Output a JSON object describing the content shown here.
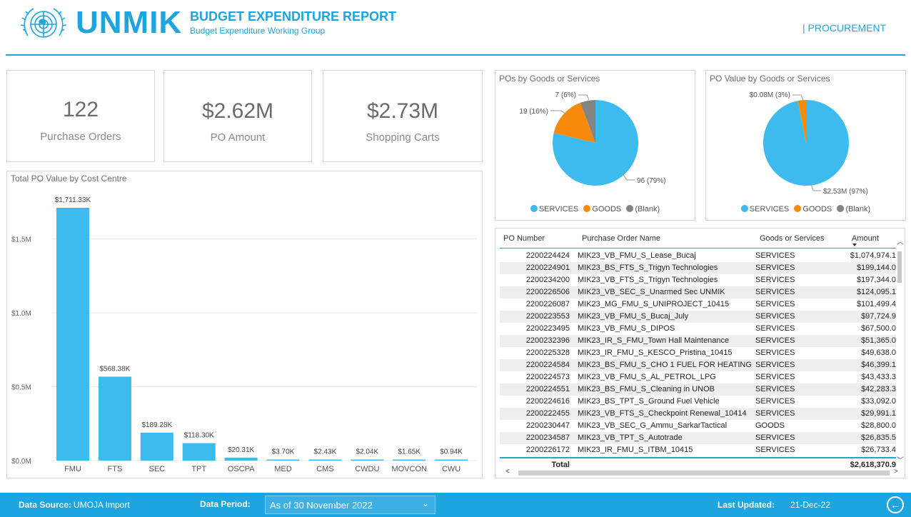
{
  "header": {
    "logo_text": "UNMIK",
    "report_title": "BUDGET EXPENDITURE REPORT",
    "report_subtitle": "Budget Expenditure Working Group",
    "section_link": "| PROCUREMENT",
    "emblem_icon": "un-emblem-icon"
  },
  "kpis": [
    {
      "value": "122",
      "label": "Purchase Orders"
    },
    {
      "value": "$2.62M",
      "label": "PO Amount"
    },
    {
      "value": "$2.73M",
      "label": "Shopping Carts"
    }
  ],
  "colors": {
    "accent": "#1da5e0",
    "services": "#3dbbee",
    "goods": "#f58a0b",
    "blank": "#848484",
    "bar": "#3dbbee"
  },
  "chart_data": [
    {
      "type": "bar",
      "title": "Total PO Value by Cost Centre",
      "categories": [
        "FMU",
        "FTS",
        "SEC",
        "TPT",
        "OSCPA",
        "MED",
        "CMS",
        "CWDU",
        "MOVCON",
        "CWU"
      ],
      "values": [
        1711.33,
        568.38,
        189.28,
        118.3,
        20.31,
        3.7,
        2.43,
        2.04,
        1.65,
        0.94
      ],
      "data_labels": [
        "$1,711.33K",
        "$568.38K",
        "$189.28K",
        "$118.30K",
        "$20.31K",
        "$3.70K",
        "$2.43K",
        "$2.04K",
        "$1.65K",
        "$0.94K"
      ],
      "ylim": [
        0,
        1711.33
      ],
      "yticks": [
        0,
        500,
        1000,
        1500
      ],
      "ytick_labels": [
        "$0.0M",
        "$0.5M",
        "$1.0M",
        "$1.5M"
      ],
      "grid": true,
      "xlabel": "",
      "ylabel": ""
    },
    {
      "type": "pie",
      "title": "POs by Goods or Services",
      "categories": [
        "SERVICES",
        "GOODS",
        "(Blank)"
      ],
      "values": [
        96,
        19,
        7
      ],
      "data_labels": [
        "96 (79%)",
        "19 (16%)",
        "7 (6%)"
      ],
      "legend_position": "bottom"
    },
    {
      "type": "pie",
      "title": "PO Value by Goods or Services",
      "categories": [
        "SERVICES",
        "GOODS",
        "(Blank)"
      ],
      "values": [
        2.53,
        0.08,
        0
      ],
      "data_labels": [
        "$2.53M (97%)",
        "$0.08M (3%)",
        ""
      ],
      "legend_position": "bottom"
    }
  ],
  "table": {
    "columns": [
      "PO Number",
      "Purchase Order Name",
      "Goods or Services",
      "Amount"
    ],
    "rows": [
      [
        "2200224424",
        "MIK23_VB_FMU_S_Lease_Bucaj",
        "SERVICES",
        "$1,074,974.1"
      ],
      [
        "2200224901",
        "MIK23_BS_FTS_S_Trigyn Technologies",
        "SERVICES",
        "$199,144.0"
      ],
      [
        "2200234200",
        "MIK23_VB_FTS_S_Trigyn Technologies",
        "SERVICES",
        "$197,344.0"
      ],
      [
        "2200226506",
        "MIK23_VB_SEC_S_Unarmed Sec UNMIK",
        "SERVICES",
        "$124,095.1"
      ],
      [
        "2200226087",
        "MIK23_MG_FMU_S_UNIPROJECT_10415",
        "SERVICES",
        "$101,499.4"
      ],
      [
        "2200223553",
        "MIK23_VB_FMU_S_Bucaj_July",
        "SERVICES",
        "$97,724.9"
      ],
      [
        "2200223495",
        "MIK23_VB_FMU_S_DIPOS",
        "SERVICES",
        "$67,500.0"
      ],
      [
        "2200232396",
        "MIK23_IR_S_FMU_Town Hall Maintenance",
        "SERVICES",
        "$51,365.0"
      ],
      [
        "2200225328",
        "MIK23_IR_FMU_S_KESCO_Pristina_10415",
        "SERVICES",
        "$49,638.0"
      ],
      [
        "2200224584",
        "MIK23_BS_FMU_S_CHO 1 FUEL FOR HEATING",
        "SERVICES",
        "$46,399.1"
      ],
      [
        "2200224573",
        "MIK23_VB_FMU_S_AL_PETROL_LPG",
        "SERVICES",
        "$43,433.3"
      ],
      [
        "2200224551",
        "MIK23_BS_FMU_S_Cleaning in UNOB",
        "SERVICES",
        "$42,283.3"
      ],
      [
        "2200224616",
        "MIK23_BS_TPT_S_Ground Fuel Vehicle",
        "SERVICES",
        "$33,092.0"
      ],
      [
        "2200222455",
        "MIK23_VB_FTS_S_Checkpoint Renewal_10414",
        "SERVICES",
        "$29,991.1"
      ],
      [
        "2200230447",
        "MIK23_VB_SEC_G_Ammu_SarkarTactical",
        "GOODS",
        "$28,800.0"
      ],
      [
        "2200234587",
        "MIK23_VB_TPT_S_Autotrade",
        "SERVICES",
        "$26,835.5"
      ],
      [
        "2200226172",
        "MIK23_IR_FMU_S_ITBM_10415",
        "SERVICES",
        "$26,733.4"
      ]
    ],
    "total_label": "Total",
    "total_amount": "$2,618,370.9"
  },
  "footer": {
    "data_source_label": "Data Source:",
    "data_source_value": "UMOJA Import",
    "data_period_label": "Data Period:",
    "data_period_value": "As of 30 November 2022",
    "last_updated_label": "Last Updated:",
    "last_updated_value": "21-Dec-22",
    "back_icon": "back-arrow-icon"
  }
}
